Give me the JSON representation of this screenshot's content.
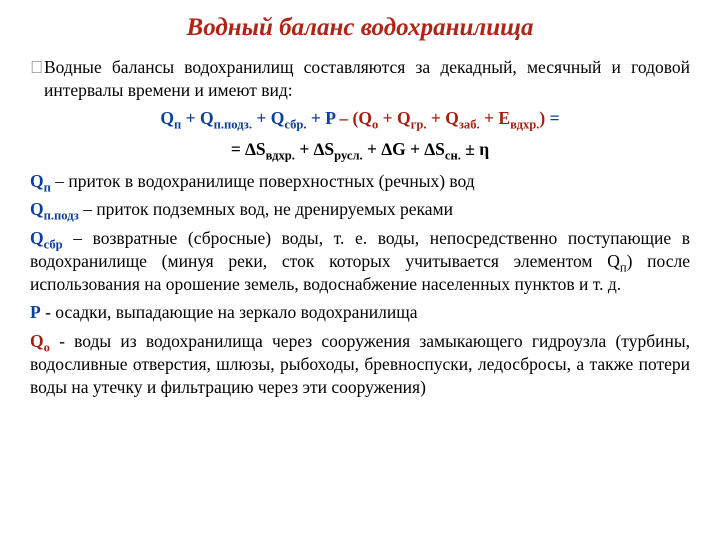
{
  "colors": {
    "title": "#b22416",
    "blue": "#0b3ea0",
    "dark_red": "#aa1e12",
    "black": "#000000",
    "bullet": "#808080"
  },
  "typography": {
    "title_font_size_pt": 19,
    "body_font_size_pt": 13,
    "font_family": "Times New Roman",
    "title_italic": true,
    "title_bold": true
  },
  "title": "Водный  баланс  водохранилища",
  "intro": "Водные балансы водохранилищ составляются за декадный, месячный и годовой интервалы времени и имеют вид:",
  "equation": {
    "lhs_blue": [
      {
        "sym": "Q",
        "sub": "п"
      },
      {
        "plus": " + "
      },
      {
        "sym": "Q",
        "sub": "п.подз."
      },
      {
        "plus": " + "
      },
      {
        "sym": "Q",
        "sub": "сбр."
      },
      {
        "plus": " + "
      },
      {
        "sym": "P",
        "sub": ""
      }
    ],
    "minus_red": " – ",
    "rhs_red_open": "(",
    "rhs_red": [
      {
        "sym": "Q",
        "sub": "о"
      },
      {
        "plus": " + "
      },
      {
        "sym": "Q",
        "sub": "гр."
      },
      {
        "plus": " + "
      },
      {
        "sym": "Q",
        "sub": "заб."
      },
      {
        "plus": " + "
      },
      {
        "sym": "E",
        "sub": "вдхр."
      }
    ],
    "rhs_red_close": ")",
    "eq_sign": " =",
    "line2": "= ∆S",
    "line2_terms": [
      {
        "sub": "вдхр.",
        "after": " + ∆S"
      },
      {
        "sub": "русл.",
        "after": " + ∆G + ∆S"
      },
      {
        "sub": "сн.",
        "after": " ± η"
      }
    ]
  },
  "defs": {
    "q_p": {
      "term": "Q",
      "sub": "п",
      "text": " – приток в водохранилище поверхностных (речных) вод"
    },
    "q_ppodz": {
      "term": "Q",
      "sub": "п.подз",
      "text": " – приток подземных вод, не дренируемых реками"
    },
    "q_sbr": {
      "term": "Q",
      "sub": "сбр",
      "text": " – возвратные (сбросные) воды, т. е. воды, непосредственно поступающие в водохранилище (минуя реки, сток которых учитывается элементом Q",
      "sub2": "п",
      "text2": ") после использования на орошение земель, водоснабжение населенных пунктов и т. д."
    },
    "p": {
      "term": "P",
      "sub": "",
      "text": " - осадки, выпадающие на зеркало водохранилища"
    },
    "q_o": {
      "term": "Q",
      "sub": "о",
      "text": " - воды из водохранилища через сооружения замыкающего гидроузла (турбины, водосливные отверстия, шлюзы, рыбоходы, бревноспуски, ледосбросы, а также потери воды на утечку и фильтрацию через эти сооружения)"
    }
  }
}
